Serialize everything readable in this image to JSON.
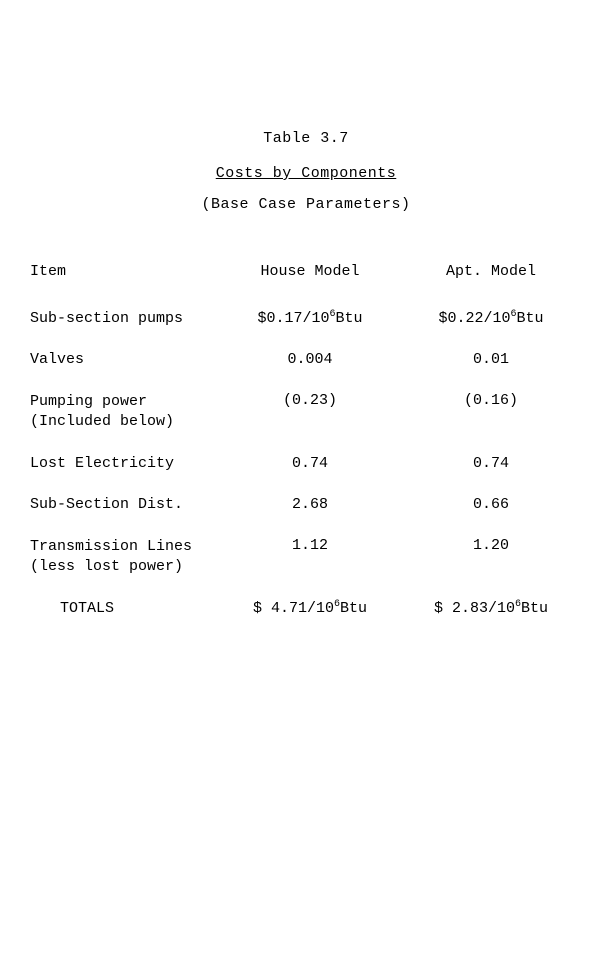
{
  "header": {
    "tableNumber": "Table 3.7",
    "title": "Costs by Components",
    "subtitle": "(Base Case Parameters)"
  },
  "columns": {
    "item": "Item",
    "house": "House Model",
    "apt": "Apt. Model"
  },
  "rows": [
    {
      "item": "Sub-section pumps",
      "house_prefix": "$0.17/10",
      "house_sup": "6",
      "house_suffix": "Btu",
      "apt_prefix": "$0.22/10",
      "apt_sup": "6",
      "apt_suffix": "Btu"
    },
    {
      "item": "Valves",
      "house": "0.004",
      "apt": "0.01"
    },
    {
      "item_line1": "Pumping power",
      "item_line2": "(Included below)",
      "house": "(0.23)",
      "apt": "(0.16)"
    },
    {
      "item": "Lost Electricity",
      "house": "0.74",
      "apt": "0.74"
    },
    {
      "item": "Sub-Section Dist.",
      "house": "2.68",
      "apt": "0.66"
    },
    {
      "item_line1": "Transmission Lines",
      "item_line2": "(less lost power)",
      "house": "1.12",
      "apt": "1.20"
    }
  ],
  "totals": {
    "label": "TOTALS",
    "house_prefix": "$ 4.71/10",
    "house_sup": "6",
    "house_suffix": "Btu",
    "apt_prefix": "$ 2.83/10",
    "apt_sup": "6",
    "apt_suffix": "Btu"
  }
}
